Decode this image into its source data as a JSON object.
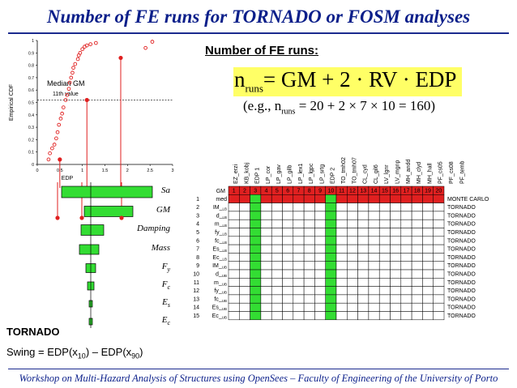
{
  "title": "Number of FE runs for TORNADO or FOSM analyses",
  "footer": "Workshop on Multi-Hazard Analysis of Structures using OpenSees – Faculty of Engineering of the University of Porto",
  "number_fe_runs_heading": "Number of FE runs:",
  "formula": {
    "lhs": "n",
    "lhs_sub": "runs",
    "rhs": "= GM + 2 · RV · EDP"
  },
  "example": {
    "prefix": "(e.g., n",
    "sub": "runs",
    "rest": " = 20 + 2 × 7 × 10 = 160)"
  },
  "cdf_plot": {
    "ylabel": "Empirical CDF",
    "xlabel": "EDP",
    "annotation_title": "Median GM",
    "annotation_sub": "11th value",
    "yticks": [
      "0",
      "0.1",
      "0.2",
      "0.3",
      "0.4",
      "0.5",
      "0.6",
      "0.7",
      "0.8",
      "0.9",
      "1"
    ],
    "xticks": [
      "0",
      "0.5",
      "1",
      "1.5",
      "2",
      "2.5",
      "3"
    ]
  },
  "chart_data": {
    "type": "scatter",
    "title": "",
    "xlabel": "EDP",
    "ylabel": "Empirical CDF",
    "xlim": [
      0,
      3
    ],
    "ylim": [
      0,
      1
    ],
    "series": [
      {
        "values_x": [
          0.25,
          0.28,
          0.33,
          0.38,
          0.42,
          0.45,
          0.48,
          0.52,
          0.55,
          0.58,
          0.63,
          0.66,
          0.7,
          0.72,
          0.75,
          0.78,
          0.8,
          0.84,
          0.9,
          0.92,
          0.95,
          1.0,
          1.05,
          1.1,
          1.18,
          1.3,
          2.4,
          2.55
        ],
        "values_y": [
          0.04,
          0.09,
          0.13,
          0.16,
          0.21,
          0.26,
          0.32,
          0.37,
          0.41,
          0.46,
          0.52,
          0.56,
          0.61,
          0.66,
          0.7,
          0.74,
          0.78,
          0.81,
          0.85,
          0.88,
          0.9,
          0.93,
          0.95,
          0.96,
          0.97,
          0.98,
          0.94,
          0.99
        ]
      }
    ],
    "markers": {
      "x": [
        0.5,
        1.1,
        1.85
      ],
      "y": [
        0.04,
        0.52,
        0.86
      ]
    },
    "median_level": 0.52
  },
  "tornado": {
    "labels": [
      "Sa",
      "GM",
      "Damping",
      "Mass",
      "F_y",
      "F_c",
      "E_s",
      "E_c"
    ],
    "bars": [
      {
        "label": "Sa",
        "left": -0.9,
        "right": 1.9
      },
      {
        "label": "GM",
        "left": -0.2,
        "right": 1.3
      },
      {
        "label": "Damping",
        "left": -0.3,
        "right": 0.4
      },
      {
        "label": "Mass",
        "left": -0.35,
        "right": 0.25
      },
      {
        "label": "F_y",
        "left": -0.15,
        "right": 0.15
      },
      {
        "label": "F_c",
        "left": -0.1,
        "right": 0.1
      },
      {
        "label": "E_s",
        "left": -0.05,
        "right": 0.05
      },
      {
        "label": "E_c",
        "left": -0.05,
        "right": 0.05
      }
    ]
  },
  "tornado_heading": "TORNADO",
  "swing": "Swing = EDP(x10) – EDP(x90)",
  "swing_parts": {
    "a": "Swing = EDP(x",
    "s1": "10",
    "b": ") – EDP(x",
    "s2": "90",
    "c": ")"
  },
  "table": {
    "col_headers": [
      "EZ_erzi",
      "KB_kobj",
      "EDP 1",
      "LP_cor",
      "LP_gav",
      "LP_gilb",
      "LP_lex1",
      "LP_lgpc",
      "LP_srtg",
      "EDP 2",
      "TO_tmh02",
      "TO_tmh07",
      "CL_cyd",
      "CL_gil6",
      "LV_lgnr",
      "LV_mgnp",
      "MH_andd",
      "MH_clyd",
      "MH_hall",
      "PF_cs05",
      "PF_cs08",
      "PF_temb"
    ],
    "gm_label": "GM",
    "gm_numbers": [
      "1",
      "2",
      "3",
      "4",
      "5",
      "6",
      "7",
      "8",
      "9",
      "10",
      "11",
      "12",
      "13",
      "14",
      "15",
      "16",
      "17",
      "18",
      "19",
      "20"
    ],
    "highlight_cols": [
      3,
      10
    ],
    "rows": [
      {
        "n": "1",
        "name": "med",
        "method": "MONTE CARLO",
        "red": true
      },
      {
        "n": "2",
        "name": "IM_LB",
        "method": "TORNADO"
      },
      {
        "n": "3",
        "name": "d_LB",
        "method": "TORNADO"
      },
      {
        "n": "4",
        "name": "m_LB",
        "method": "TORNADO"
      },
      {
        "n": "5",
        "name": "fy_LB",
        "method": "TORNADO"
      },
      {
        "n": "6",
        "name": "fc_LB",
        "method": "TORNADO"
      },
      {
        "n": "7",
        "name": "Es_LB",
        "method": "TORNADO"
      },
      {
        "n": "8",
        "name": "Ec_LB",
        "method": "TORNADO"
      },
      {
        "n": "9",
        "name": "IM_UB",
        "method": "TORNADO"
      },
      {
        "n": "10",
        "name": "d_UB",
        "method": "TORNADO"
      },
      {
        "n": "11",
        "name": "m_UB",
        "method": "TORNADO"
      },
      {
        "n": "12",
        "name": "fy_UB",
        "method": "TORNADO"
      },
      {
        "n": "13",
        "name": "fc_UB",
        "method": "TORNADO"
      },
      {
        "n": "14",
        "name": "Es_UB",
        "method": "TORNADO"
      },
      {
        "n": "15",
        "name": "Ec_UB",
        "method": "TORNADO"
      }
    ]
  },
  "colors": {
    "title": "#0b1f8a",
    "green": "#33dd33",
    "red": "#e02020",
    "formula_bg": "#ffff66"
  }
}
